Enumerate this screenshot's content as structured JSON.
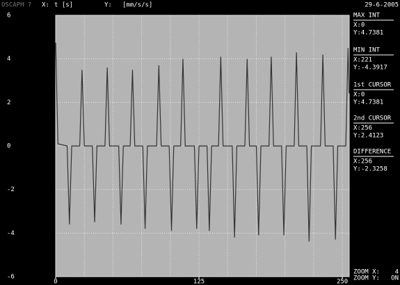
{
  "chart_data": {
    "type": "line",
    "header": {
      "app": "OSCAPH ?",
      "x_prefix": "X:",
      "x_label": "t [s]",
      "y_prefix": "Y:",
      "y_label": "[mm/s/s]"
    },
    "x": [
      0,
      2,
      10,
      12,
      14,
      21,
      23,
      25,
      32,
      34,
      36,
      43,
      45,
      47,
      55,
      57,
      59,
      65,
      67,
      69,
      76,
      78,
      80,
      88,
      90,
      92,
      99,
      101,
      103,
      109,
      111,
      113,
      121,
      123,
      125,
      132,
      134,
      136,
      142,
      144,
      146,
      154,
      156,
      158,
      165,
      167,
      169,
      175,
      177,
      179,
      186,
      188,
      190,
      197,
      199,
      201,
      208,
      210,
      212,
      219,
      221,
      223,
      231,
      233,
      235,
      242,
      244,
      246,
      253,
      255,
      256
    ],
    "series": [
      {
        "color": "#333333",
        "values": [
          4.74,
          0.1,
          0,
          -3.6,
          0,
          0,
          3.5,
          0,
          0,
          -3.5,
          0,
          0,
          3.6,
          0,
          0,
          -3.6,
          0,
          0,
          3.5,
          0,
          0,
          -3.8,
          0,
          0,
          3.7,
          0,
          0,
          -3.9,
          0,
          0,
          4.0,
          0,
          0,
          -3.8,
          0,
          0,
          -3.9,
          0,
          0,
          4.1,
          0,
          0,
          -4.2,
          0,
          0,
          4.0,
          0,
          0,
          -4.1,
          0,
          0,
          4.1,
          0,
          0,
          -4.1,
          0,
          0,
          4.3,
          0,
          0,
          -4.39,
          0,
          0,
          4.2,
          0,
          0,
          -4.3,
          0,
          0,
          4.5,
          2.41
        ]
      }
    ],
    "xlim": [
      0,
      256
    ],
    "xticks": [
      0,
      125,
      250
    ],
    "xgrid": [
      25,
      50,
      75,
      100,
      125,
      150,
      175,
      200,
      225,
      250
    ],
    "ylim": [
      -6,
      6
    ],
    "yticks": [
      -6,
      -4,
      -2,
      0,
      2,
      4,
      6
    ],
    "grid": true
  },
  "readout": {
    "date": "29-6-2005",
    "blocks": [
      {
        "title": "MAX INT",
        "x": "X:0",
        "y": "Y:4.7381"
      },
      {
        "title": "MIN INT",
        "x": "X:221",
        "y": "Y:-4.3917"
      },
      {
        "title": "1st CURSOR",
        "x": "X:0",
        "y": "Y:4.7381"
      },
      {
        "title": "2nd CURSOR",
        "x": "X:256",
        "y": "Y:2.4123"
      },
      {
        "title": "DIFFERENCE",
        "x": "X:256",
        "y": "Y:-2.3258"
      }
    ],
    "zoom": [
      {
        "label": "ZOOM X:",
        "value": "4"
      },
      {
        "label": "ZOOM Y:",
        "value": "ON"
      }
    ]
  }
}
